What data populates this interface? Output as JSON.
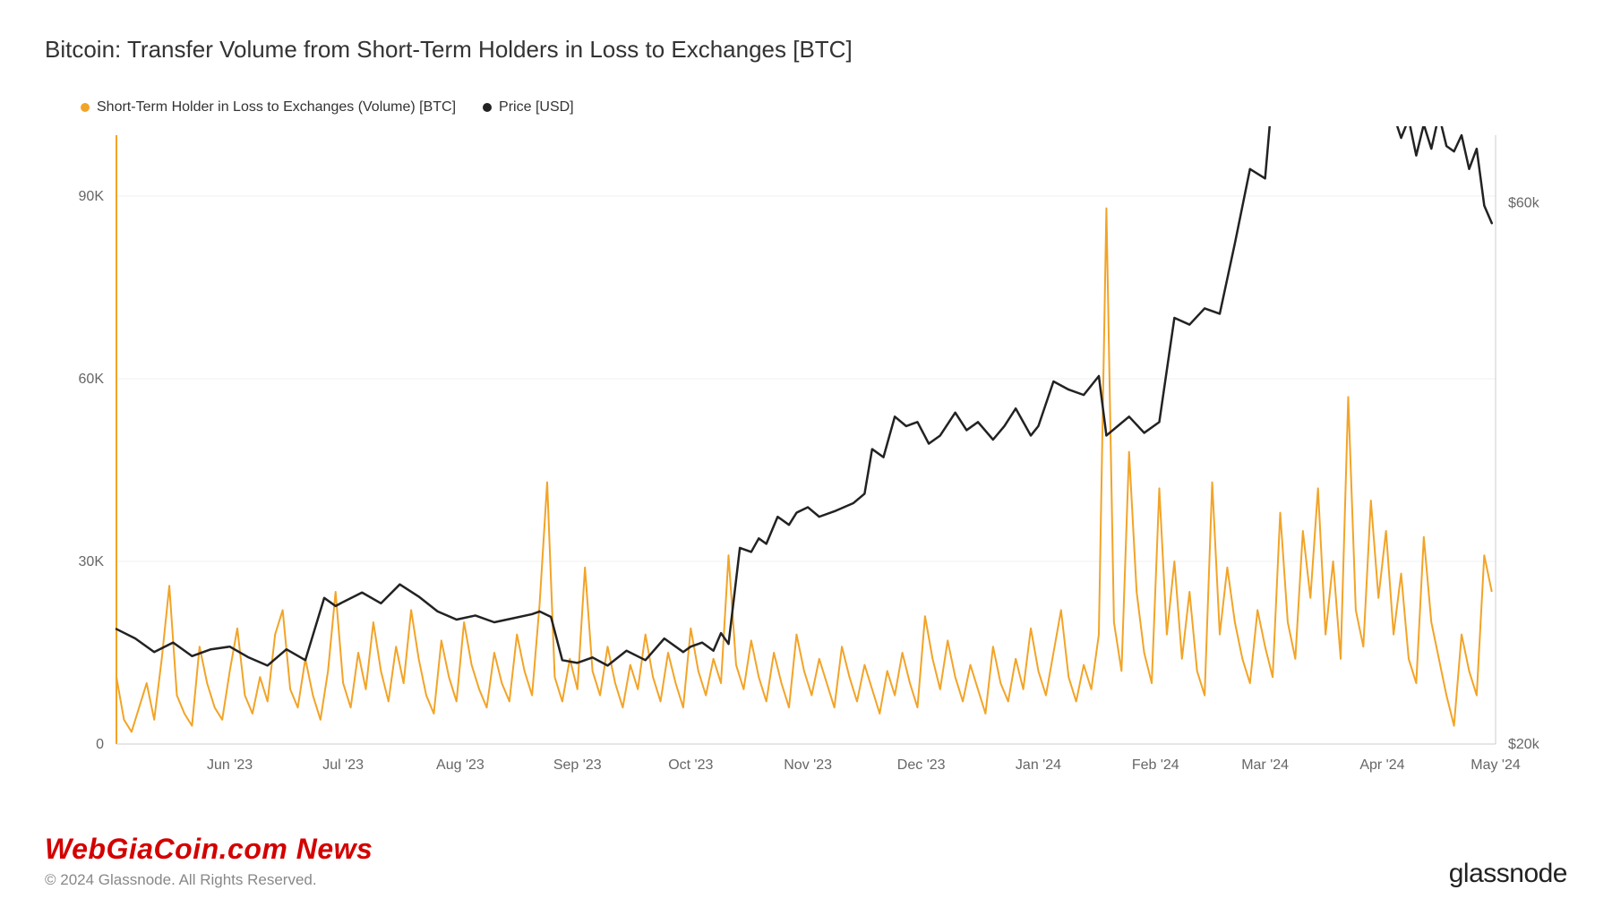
{
  "title": "Bitcoin: Transfer Volume from Short-Term Holders in Loss to Exchanges [BTC]",
  "legend": {
    "series1": {
      "label": "Short-Term Holder in Loss to Exchanges (Volume) [BTC]",
      "color": "#f2a427"
    },
    "series2": {
      "label": "Price [USD]",
      "color": "#222222"
    }
  },
  "watermark": "WebGiaCoin.com News",
  "copyright": "© 2024 Glassnode. All Rights Reserved.",
  "brand": "glassnode",
  "chart": {
    "type": "dual-axis-line",
    "background_color": "#ffffff",
    "grid_color": "#f0f0f0",
    "axis_color": "#cccccc",
    "left_axis_color": "#f2a427",
    "tick_font_size": 16,
    "tick_color": "#666666",
    "x": {
      "domain": [
        0,
        365
      ],
      "ticks": [
        30,
        60,
        91,
        122,
        152,
        183,
        213,
        244,
        275,
        304,
        335,
        365
      ],
      "tick_labels": [
        "Jun '23",
        "Jul '23",
        "Aug '23",
        "Sep '23",
        "Oct '23",
        "Nov '23",
        "Dec '23",
        "Jan '24",
        "Feb '24",
        "Mar '24",
        "Apr '24",
        "May '24"
      ]
    },
    "y_left": {
      "domain": [
        0,
        100000
      ],
      "ticks": [
        0,
        30000,
        60000,
        90000
      ],
      "tick_labels": [
        "0",
        "30K",
        "60K",
        "90K"
      ]
    },
    "y_right": {
      "domain": [
        20000,
        65000
      ],
      "ticks": [
        20000,
        60000
      ],
      "tick_labels": [
        "$20k",
        "$60k"
      ]
    },
    "series_volume": {
      "color": "#f2a427",
      "stroke_width": 2,
      "data": [
        [
          0,
          11000
        ],
        [
          2,
          4000
        ],
        [
          4,
          2000
        ],
        [
          6,
          6000
        ],
        [
          8,
          10000
        ],
        [
          10,
          4000
        ],
        [
          12,
          14000
        ],
        [
          14,
          26000
        ],
        [
          16,
          8000
        ],
        [
          18,
          5000
        ],
        [
          20,
          3000
        ],
        [
          22,
          16000
        ],
        [
          24,
          10000
        ],
        [
          26,
          6000
        ],
        [
          28,
          4000
        ],
        [
          30,
          12000
        ],
        [
          32,
          19000
        ],
        [
          34,
          8000
        ],
        [
          36,
          5000
        ],
        [
          38,
          11000
        ],
        [
          40,
          7000
        ],
        [
          42,
          18000
        ],
        [
          44,
          22000
        ],
        [
          46,
          9000
        ],
        [
          48,
          6000
        ],
        [
          50,
          14000
        ],
        [
          52,
          8000
        ],
        [
          54,
          4000
        ],
        [
          56,
          12000
        ],
        [
          58,
          25000
        ],
        [
          60,
          10000
        ],
        [
          62,
          6000
        ],
        [
          64,
          15000
        ],
        [
          66,
          9000
        ],
        [
          68,
          20000
        ],
        [
          70,
          12000
        ],
        [
          72,
          7000
        ],
        [
          74,
          16000
        ],
        [
          76,
          10000
        ],
        [
          78,
          22000
        ],
        [
          80,
          14000
        ],
        [
          82,
          8000
        ],
        [
          84,
          5000
        ],
        [
          86,
          17000
        ],
        [
          88,
          11000
        ],
        [
          90,
          7000
        ],
        [
          92,
          20000
        ],
        [
          94,
          13000
        ],
        [
          96,
          9000
        ],
        [
          98,
          6000
        ],
        [
          100,
          15000
        ],
        [
          102,
          10000
        ],
        [
          104,
          7000
        ],
        [
          106,
          18000
        ],
        [
          108,
          12000
        ],
        [
          110,
          8000
        ],
        [
          112,
          23000
        ],
        [
          114,
          43000
        ],
        [
          116,
          11000
        ],
        [
          118,
          7000
        ],
        [
          120,
          14000
        ],
        [
          122,
          9000
        ],
        [
          124,
          29000
        ],
        [
          126,
          12000
        ],
        [
          128,
          8000
        ],
        [
          130,
          16000
        ],
        [
          132,
          10000
        ],
        [
          134,
          6000
        ],
        [
          136,
          13000
        ],
        [
          138,
          9000
        ],
        [
          140,
          18000
        ],
        [
          142,
          11000
        ],
        [
          144,
          7000
        ],
        [
          146,
          15000
        ],
        [
          148,
          10000
        ],
        [
          150,
          6000
        ],
        [
          152,
          19000
        ],
        [
          154,
          12000
        ],
        [
          156,
          8000
        ],
        [
          158,
          14000
        ],
        [
          160,
          10000
        ],
        [
          162,
          31000
        ],
        [
          164,
          13000
        ],
        [
          166,
          9000
        ],
        [
          168,
          17000
        ],
        [
          170,
          11000
        ],
        [
          172,
          7000
        ],
        [
          174,
          15000
        ],
        [
          176,
          10000
        ],
        [
          178,
          6000
        ],
        [
          180,
          18000
        ],
        [
          182,
          12000
        ],
        [
          184,
          8000
        ],
        [
          186,
          14000
        ],
        [
          188,
          10000
        ],
        [
          190,
          6000
        ],
        [
          192,
          16000
        ],
        [
          194,
          11000
        ],
        [
          196,
          7000
        ],
        [
          198,
          13000
        ],
        [
          200,
          9000
        ],
        [
          202,
          5000
        ],
        [
          204,
          12000
        ],
        [
          206,
          8000
        ],
        [
          208,
          15000
        ],
        [
          210,
          10000
        ],
        [
          212,
          6000
        ],
        [
          214,
          21000
        ],
        [
          216,
          14000
        ],
        [
          218,
          9000
        ],
        [
          220,
          17000
        ],
        [
          222,
          11000
        ],
        [
          224,
          7000
        ],
        [
          226,
          13000
        ],
        [
          228,
          9000
        ],
        [
          230,
          5000
        ],
        [
          232,
          16000
        ],
        [
          234,
          10000
        ],
        [
          236,
          7000
        ],
        [
          238,
          14000
        ],
        [
          240,
          9000
        ],
        [
          242,
          19000
        ],
        [
          244,
          12000
        ],
        [
          246,
          8000
        ],
        [
          248,
          15000
        ],
        [
          250,
          22000
        ],
        [
          252,
          11000
        ],
        [
          254,
          7000
        ],
        [
          256,
          13000
        ],
        [
          258,
          9000
        ],
        [
          260,
          18000
        ],
        [
          262,
          88000
        ],
        [
          264,
          20000
        ],
        [
          266,
          12000
        ],
        [
          268,
          48000
        ],
        [
          270,
          25000
        ],
        [
          272,
          15000
        ],
        [
          274,
          10000
        ],
        [
          276,
          42000
        ],
        [
          278,
          18000
        ],
        [
          280,
          30000
        ],
        [
          282,
          14000
        ],
        [
          284,
          25000
        ],
        [
          286,
          12000
        ],
        [
          288,
          8000
        ],
        [
          290,
          43000
        ],
        [
          292,
          18000
        ],
        [
          294,
          29000
        ],
        [
          296,
          20000
        ],
        [
          298,
          14000
        ],
        [
          300,
          10000
        ],
        [
          302,
          22000
        ],
        [
          304,
          16000
        ],
        [
          306,
          11000
        ],
        [
          308,
          38000
        ],
        [
          310,
          20000
        ],
        [
          312,
          14000
        ],
        [
          314,
          35000
        ],
        [
          316,
          24000
        ],
        [
          318,
          42000
        ],
        [
          320,
          18000
        ],
        [
          322,
          30000
        ],
        [
          324,
          14000
        ],
        [
          326,
          57000
        ],
        [
          328,
          22000
        ],
        [
          330,
          16000
        ],
        [
          332,
          40000
        ],
        [
          334,
          24000
        ],
        [
          336,
          35000
        ],
        [
          338,
          18000
        ],
        [
          340,
          28000
        ],
        [
          342,
          14000
        ],
        [
          344,
          10000
        ],
        [
          346,
          34000
        ],
        [
          348,
          20000
        ],
        [
          350,
          14000
        ],
        [
          352,
          8000
        ],
        [
          354,
          3000
        ],
        [
          356,
          18000
        ],
        [
          358,
          12000
        ],
        [
          360,
          8000
        ],
        [
          362,
          31000
        ],
        [
          364,
          25000
        ]
      ]
    },
    "series_price": {
      "color": "#222222",
      "stroke_width": 2.5,
      "data": [
        [
          0,
          28500
        ],
        [
          5,
          27800
        ],
        [
          10,
          26800
        ],
        [
          15,
          27500
        ],
        [
          20,
          26500
        ],
        [
          25,
          27000
        ],
        [
          30,
          27200
        ],
        [
          35,
          26400
        ],
        [
          40,
          25800
        ],
        [
          45,
          27000
        ],
        [
          50,
          26200
        ],
        [
          55,
          30800
        ],
        [
          58,
          30200
        ],
        [
          60,
          30500
        ],
        [
          65,
          31200
        ],
        [
          70,
          30400
        ],
        [
          75,
          31800
        ],
        [
          80,
          30900
        ],
        [
          85,
          29800
        ],
        [
          90,
          29200
        ],
        [
          95,
          29500
        ],
        [
          100,
          29000
        ],
        [
          105,
          29300
        ],
        [
          110,
          29600
        ],
        [
          112,
          29800
        ],
        [
          115,
          29400
        ],
        [
          118,
          26200
        ],
        [
          122,
          26000
        ],
        [
          126,
          26400
        ],
        [
          130,
          25800
        ],
        [
          135,
          26900
        ],
        [
          140,
          26200
        ],
        [
          145,
          27800
        ],
        [
          150,
          26800
        ],
        [
          152,
          27200
        ],
        [
          155,
          27500
        ],
        [
          158,
          26900
        ],
        [
          160,
          28200
        ],
        [
          162,
          27400
        ],
        [
          165,
          34500
        ],
        [
          168,
          34200
        ],
        [
          170,
          35200
        ],
        [
          172,
          34800
        ],
        [
          175,
          36800
        ],
        [
          178,
          36200
        ],
        [
          180,
          37100
        ],
        [
          183,
          37500
        ],
        [
          186,
          36800
        ],
        [
          190,
          37200
        ],
        [
          195,
          37800
        ],
        [
          198,
          38500
        ],
        [
          200,
          41800
        ],
        [
          203,
          41200
        ],
        [
          206,
          44200
        ],
        [
          209,
          43500
        ],
        [
          212,
          43800
        ],
        [
          215,
          42200
        ],
        [
          218,
          42800
        ],
        [
          222,
          44500
        ],
        [
          225,
          43200
        ],
        [
          228,
          43800
        ],
        [
          232,
          42500
        ],
        [
          235,
          43500
        ],
        [
          238,
          44800
        ],
        [
          242,
          42800
        ],
        [
          244,
          43500
        ],
        [
          248,
          46800
        ],
        [
          252,
          46200
        ],
        [
          256,
          45800
        ],
        [
          260,
          47200
        ],
        [
          262,
          42800
        ],
        [
          265,
          43500
        ],
        [
          268,
          44200
        ],
        [
          272,
          43000
        ],
        [
          276,
          43800
        ],
        [
          280,
          51500
        ],
        [
          284,
          51000
        ],
        [
          288,
          52200
        ],
        [
          292,
          51800
        ],
        [
          296,
          57000
        ],
        [
          300,
          62500
        ],
        [
          304,
          61800
        ],
        [
          306,
          68200
        ],
        [
          308,
          67500
        ],
        [
          310,
          72800
        ],
        [
          312,
          71200
        ],
        [
          314,
          68500
        ],
        [
          316,
          70200
        ],
        [
          318,
          65800
        ],
        [
          320,
          69500
        ],
        [
          322,
          68200
        ],
        [
          324,
          71000
        ],
        [
          326,
          70200
        ],
        [
          328,
          69000
        ],
        [
          330,
          70500
        ],
        [
          332,
          67800
        ],
        [
          334,
          70000
        ],
        [
          336,
          69200
        ],
        [
          338,
          66500
        ],
        [
          340,
          64800
        ],
        [
          342,
          66200
        ],
        [
          344,
          63500
        ],
        [
          346,
          65800
        ],
        [
          348,
          64000
        ],
        [
          350,
          66500
        ],
        [
          352,
          64200
        ],
        [
          354,
          63800
        ],
        [
          356,
          65000
        ],
        [
          358,
          62500
        ],
        [
          360,
          64000
        ],
        [
          362,
          59800
        ],
        [
          364,
          58500
        ]
      ]
    }
  }
}
